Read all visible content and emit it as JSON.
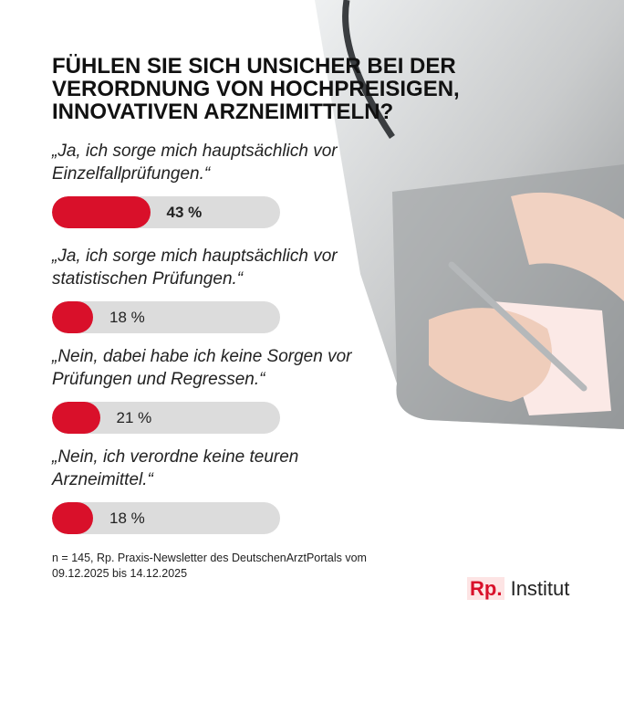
{
  "chart_data": {
    "type": "bar",
    "title": "FÜHLEN SIE SICH UNSICHER BEI DER VERORDNUNG VON HOCHPREISIGEN, INNOVATIVEN ARZNEIMITTELN?",
    "categories": [
      "„Ja, ich sorge mich hauptsächlich vor Einzelfallprüfungen.“",
      "„Ja, ich sorge mich hauptsächlich vor statistischen Prüfungen.“",
      "„Nein, dabei habe ich keine Sorgen vor Prüfungen und Regressen.“",
      "„Nein, ich verordne keine teuren Arzneimittel.“"
    ],
    "values": [
      43,
      18,
      21,
      18
    ],
    "value_labels": [
      "43 %",
      "18 %",
      "21 %",
      "18 %"
    ],
    "color": "#d9102a",
    "track_color": "#dcdcdc",
    "xlim": [
      0,
      100
    ],
    "source": "n = 145, Rp. Praxis-Newsletter des DeutschenArztPortals vom 09.12.2025 bis 14.12.2025",
    "logo": {
      "mark": "Rp.",
      "text": "Institut"
    }
  }
}
